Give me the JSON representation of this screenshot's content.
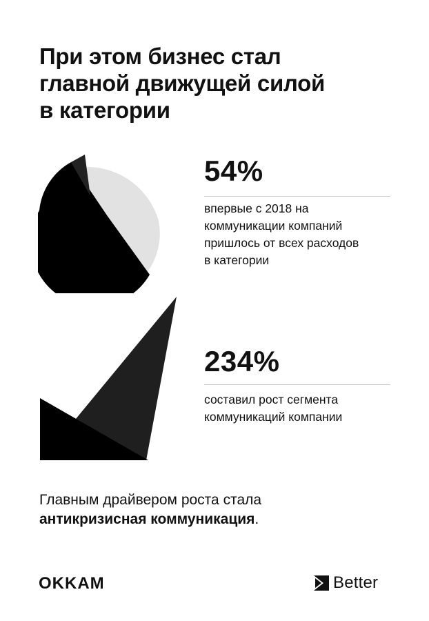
{
  "title": {
    "line1": "При этом бизнес стал",
    "line2": "главной движущей силой",
    "line3": "в категории"
  },
  "stats": [
    {
      "value": "54%",
      "description": [
        "впервые с 2018 на",
        "коммуникации компаний",
        "пришлось от всех расходов",
        "в категории"
      ]
    },
    {
      "value": "234%",
      "description": [
        "составил рост сегмента",
        "коммуникаций компании"
      ]
    }
  ],
  "conclusion": {
    "line1": "Главным драйвером роста стала",
    "line2_bold": "антикризисная коммуникация",
    "line2_end": "."
  },
  "logos": {
    "okkam": "OKKAM",
    "better": "Better"
  },
  "colors": {
    "background": "#ffffff",
    "text": "#111111",
    "pie_dark": "#000000",
    "pie_light": "#e3e2e2",
    "pie_slice": "#222222",
    "triangle_dark": "#000000",
    "triangle_gray": "#1f1f1f",
    "rule": "#c9c9c9"
  }
}
